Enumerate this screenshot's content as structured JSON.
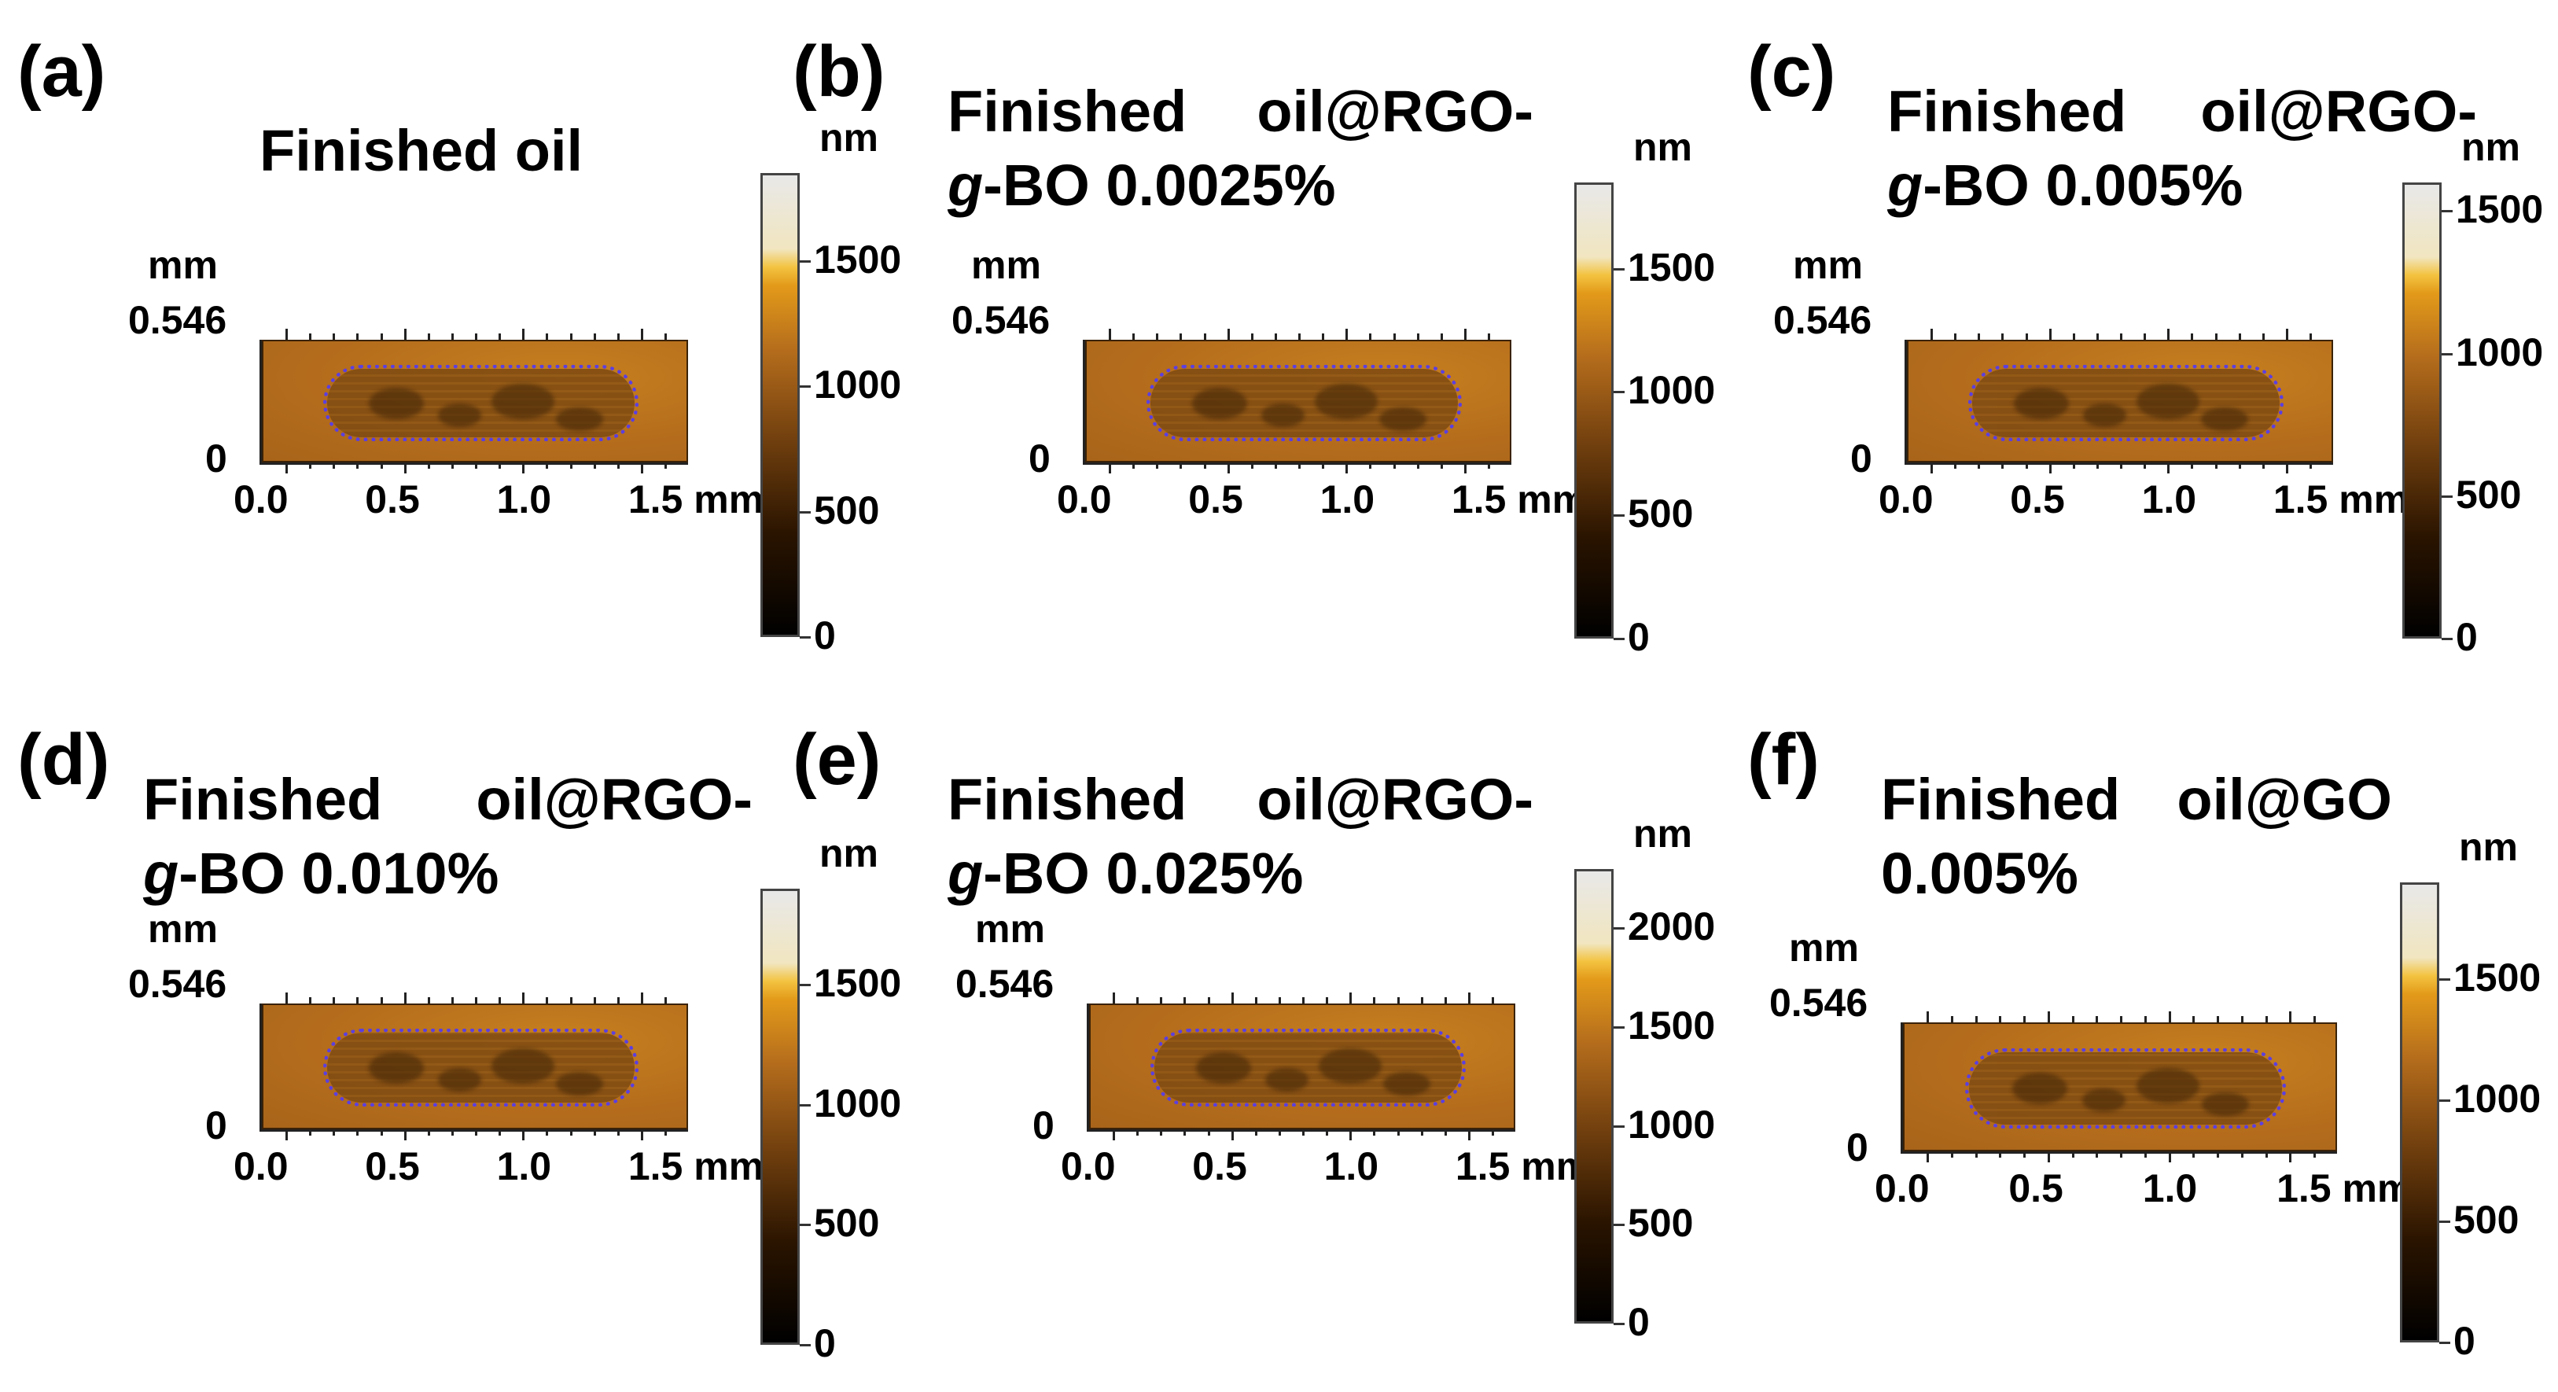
{
  "figure": {
    "x_axis_unit": "mm",
    "y_axis_unit": "mm",
    "y_axis_top": "0.546",
    "y_axis_bottom": "0",
    "colorbar_unit": "nm",
    "colors": {
      "surface": "#b56d1c",
      "wear_track": "#7e4a12",
      "wear_outline": "#5b3fe0"
    }
  },
  "panels": [
    {
      "letter": "(a)",
      "title_line1": [
        "Finished oil"
      ],
      "title_line2_italic": "",
      "title_line2_rest": "",
      "x_ticks": [
        "0.0",
        "0.5",
        "1.0",
        "1.5 mm"
      ],
      "colorbar_ticks": [
        "1500",
        "1000",
        "500",
        "0"
      ],
      "colorbar_values": [
        1500,
        1000,
        500,
        0
      ],
      "colorbar_max": 1850
    },
    {
      "letter": "(b)",
      "title_line1": [
        "Finished",
        "oil@RGO-"
      ],
      "title_line2_italic": "g",
      "title_line2_rest": "-BO 0.0025%",
      "x_ticks": [
        "0.0",
        "0.5",
        "1.0",
        "1.5 mm"
      ],
      "colorbar_ticks": [
        "1500",
        "1000",
        "500",
        "0"
      ],
      "colorbar_values": [
        1500,
        1000,
        500,
        0
      ],
      "colorbar_max": 1850
    },
    {
      "letter": "(c)",
      "title_line1": [
        "Finished",
        "oil@RGO-"
      ],
      "title_line2_italic": "g",
      "title_line2_rest": "-BO 0.005%",
      "x_ticks": [
        "0.0",
        "0.5",
        "1.0",
        "1.5 mm"
      ],
      "colorbar_ticks": [
        "1500",
        "1000",
        "500",
        "0"
      ],
      "colorbar_values": [
        1500,
        1000,
        500,
        0
      ],
      "colorbar_max": 1600
    },
    {
      "letter": "(d)",
      "title_line1": [
        "Finished",
        "oil@RGO-"
      ],
      "title_line2_italic": "g",
      "title_line2_rest": "-BO 0.010%",
      "x_ticks": [
        "0.0",
        "0.5",
        "1.0",
        "1.5 mm"
      ],
      "colorbar_ticks": [
        "1500",
        "1000",
        "500",
        "0"
      ],
      "colorbar_values": [
        1500,
        1000,
        500,
        0
      ],
      "colorbar_max": 1900
    },
    {
      "letter": "(e)",
      "title_line1": [
        "Finished",
        "oil@RGO-"
      ],
      "title_line2_italic": "g",
      "title_line2_rest": "-BO 0.025%",
      "x_ticks": [
        "0.0",
        "0.5",
        "1.0",
        "1.5 mm"
      ],
      "colorbar_ticks": [
        "2000",
        "1500",
        "1000",
        "500",
        "0"
      ],
      "colorbar_values": [
        2000,
        1500,
        1000,
        500,
        0
      ],
      "colorbar_max": 2300
    },
    {
      "letter": "(f)",
      "title_line1": [
        "Finished",
        "oil@GO"
      ],
      "title_line2_italic": "",
      "title_line2_rest": "0.005%",
      "x_ticks": [
        "0.0",
        "0.5",
        "1.0",
        "1.5 mm"
      ],
      "colorbar_ticks": [
        "1500",
        "1000",
        "500",
        "0"
      ],
      "colorbar_values": [
        1500,
        1000,
        500,
        0
      ],
      "colorbar_max": 1900
    }
  ]
}
